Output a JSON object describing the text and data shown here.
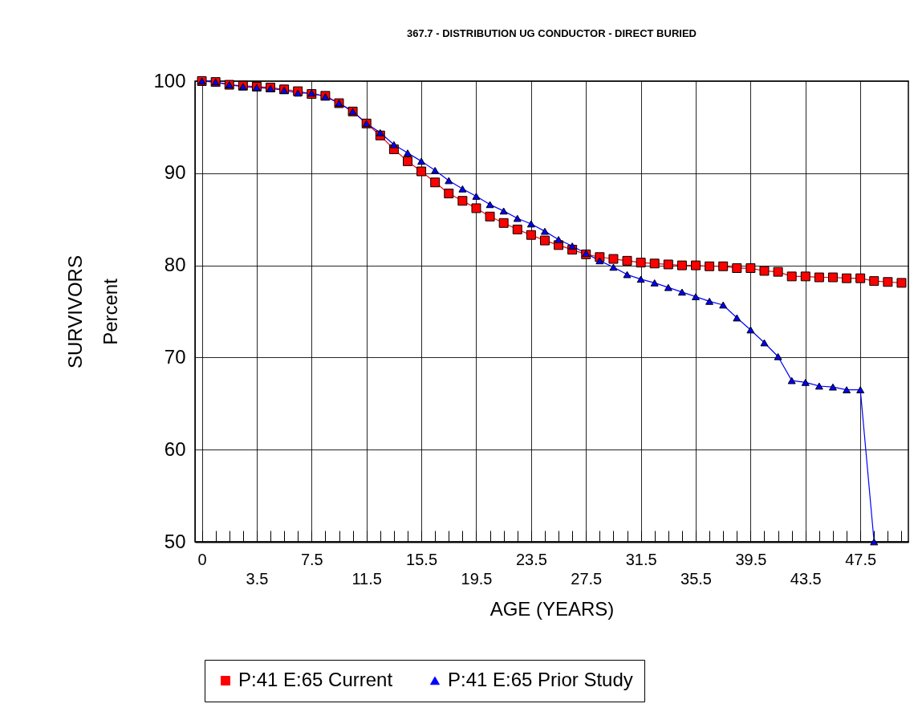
{
  "chart_data": {
    "type": "line",
    "title": "367.7 - DISTRIBUTION UG CONDUCTOR - DIRECT BURIED",
    "xlabel": "AGE (YEARS)",
    "ylabel": "SURVIVORS\nPercent",
    "categories": [
      "0",
      null,
      null,
      null,
      "3.5",
      null,
      null,
      null,
      "7.5",
      null,
      null,
      null,
      "11.5",
      null,
      null,
      null,
      "15.5",
      null,
      null,
      null,
      "19.5",
      null,
      null,
      null,
      "23.5",
      null,
      null,
      null,
      "27.5",
      null,
      null,
      null,
      "31.5",
      null,
      null,
      null,
      "35.5",
      null,
      null,
      null,
      "39.5",
      null,
      null,
      null,
      "43.5",
      null,
      null,
      null,
      "47.5",
      null,
      null,
      null
    ],
    "series": [
      {
        "name": "P:41 E:65 Current",
        "color": "#ff0000",
        "marker": "square",
        "values": [
          100,
          99.9,
          99.6,
          99.5,
          99.4,
          99.3,
          99.1,
          98.9,
          98.6,
          98.4,
          97.6,
          96.7,
          95.4,
          94.1,
          92.6,
          91.3,
          90.2,
          89.0,
          87.8,
          87.0,
          86.2,
          85.3,
          84.6,
          83.9,
          83.3,
          82.7,
          82.2,
          81.7,
          81.2,
          80.9,
          80.7,
          80.5,
          80.3,
          80.2,
          80.1,
          80.0,
          80.0,
          79.9,
          79.9,
          79.7,
          79.7,
          79.4,
          79.3,
          78.8,
          78.8,
          78.7,
          78.7,
          78.6,
          78.6,
          78.3,
          78.2,
          78.1
        ]
      },
      {
        "name": "P:41 E:65 Prior Study",
        "color": "#0000ff",
        "marker": "triangle",
        "values": [
          100,
          99.9,
          99.6,
          99.4,
          99.3,
          99.2,
          99.0,
          98.7,
          98.7,
          98.3,
          97.6,
          96.7,
          95.4,
          94.4,
          93.1,
          92.2,
          91.3,
          90.3,
          89.2,
          88.3,
          87.5,
          86.6,
          85.9,
          85.1,
          84.5,
          83.7,
          82.8,
          82.1,
          81.3,
          80.5,
          79.8,
          79.0,
          78.5,
          78.1,
          77.6,
          77.1,
          76.6,
          76.1,
          75.7,
          74.3,
          73.0,
          71.6,
          70.1,
          67.5,
          67.3,
          66.9,
          66.8,
          66.5,
          66.5,
          50,
          null,
          null
        ]
      }
    ],
    "ylim": [
      50,
      100
    ],
    "yticks": [
      50,
      60,
      70,
      80,
      90,
      100
    ],
    "grid": true,
    "legend": "bottom",
    "line_style": "solid"
  }
}
